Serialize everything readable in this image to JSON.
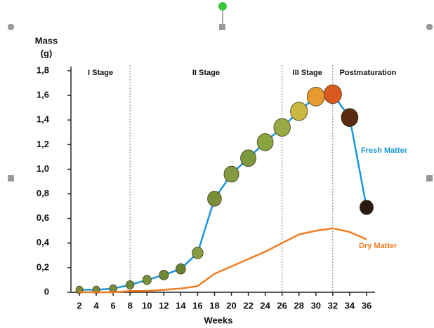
{
  "chart_data": {
    "type": "line",
    "ylabel": [
      "Mass",
      "(g)"
    ],
    "xlabel": "Weeks",
    "x": [
      2,
      4,
      6,
      8,
      10,
      12,
      14,
      16,
      18,
      20,
      22,
      24,
      26,
      28,
      30,
      32,
      34,
      36
    ],
    "series": [
      {
        "name": "Fresh Matter",
        "color": "#1a96d8",
        "values": [
          0.02,
          0.02,
          0.03,
          0.06,
          0.1,
          0.14,
          0.19,
          0.32,
          0.76,
          0.96,
          1.09,
          1.22,
          1.34,
          1.47,
          1.59,
          1.61,
          1.42,
          0.69
        ],
        "marker_colors": [
          "#8a8a3a",
          "#7d8b3a",
          "#7d8b3a",
          "#6f8a35",
          "#7a9038",
          "#6f8a35",
          "#6a8233",
          "#8a9c42",
          "#7a9038",
          "#849a40",
          "#7d9a3e",
          "#8aa442",
          "#98aa45",
          "#c9b940",
          "#e89a30",
          "#d9581e",
          "#5a2a10",
          "#2a1a12"
        ]
      },
      {
        "name": "Dry Matter",
        "color": "#ee7d22",
        "values": [
          0,
          0,
          0,
          0.01,
          0.01,
          0.02,
          0.03,
          0.05,
          0.15,
          0.21,
          0.27,
          0.33,
          0.4,
          0.47,
          0.5,
          0.52,
          0.49,
          0.43
        ]
      }
    ],
    "xlim": [
      1,
      37
    ],
    "xticks": [
      2,
      4,
      6,
      8,
      10,
      12,
      14,
      16,
      18,
      20,
      22,
      24,
      26,
      28,
      30,
      32,
      34,
      36
    ],
    "ylim": [
      0,
      1.8
    ],
    "yticks": [
      0,
      {
        "value": 0.2,
        "label": "0,2"
      },
      {
        "value": 0.4,
        "label": "0,4"
      },
      {
        "value": 0.6,
        "label": "0,6"
      },
      {
        "value": 0.8,
        "label": "0,8"
      },
      {
        "value": 1.0,
        "label": "1,0"
      },
      {
        "value": 1.2,
        "label": "1,2"
      },
      {
        "value": 1.4,
        "label": "1,4"
      },
      {
        "value": 1.6,
        "label": "1,6"
      },
      {
        "value": 1.8,
        "label": "1,8"
      }
    ],
    "stage_boundaries": [
      8,
      26,
      32
    ],
    "stages": [
      "I Stage",
      "II Stage",
      "III Stage",
      "Postmaturation"
    ]
  }
}
